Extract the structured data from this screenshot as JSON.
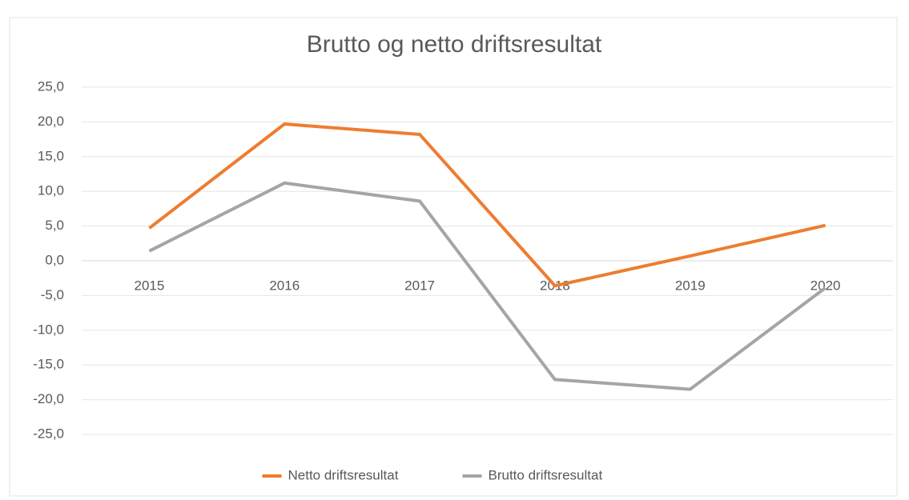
{
  "chart_data": {
    "type": "line",
    "title": "Brutto og netto driftsresultat",
    "categories": [
      "2015",
      "2016",
      "2017",
      "2018",
      "2019",
      "2020"
    ],
    "series": [
      {
        "name": "Netto driftsresultat",
        "color": "#ed7d31",
        "values": [
          4.7,
          19.7,
          18.2,
          -3.6,
          0.7,
          5.1
        ]
      },
      {
        "name": "Brutto driftsresultat",
        "color": "#a5a5a5",
        "values": [
          1.4,
          11.2,
          8.6,
          -17.1,
          -18.5,
          -3.9
        ]
      }
    ],
    "ylim": [
      -25,
      25
    ],
    "yticks": [
      {
        "value": -25,
        "label": "-25,0"
      },
      {
        "value": -20,
        "label": "-20,0"
      },
      {
        "value": -15,
        "label": "-15,0"
      },
      {
        "value": -10,
        "label": "-10,0"
      },
      {
        "value": -5,
        "label": "-5,0"
      },
      {
        "value": 0,
        "label": "0,0"
      },
      {
        "value": 5,
        "label": "5,0"
      },
      {
        "value": 10,
        "label": "10,0"
      },
      {
        "value": 15,
        "label": "15,0"
      },
      {
        "value": 20,
        "label": "20,0"
      },
      {
        "value": 25,
        "label": "25,0"
      }
    ],
    "grid": true,
    "legend": "bottom"
  }
}
